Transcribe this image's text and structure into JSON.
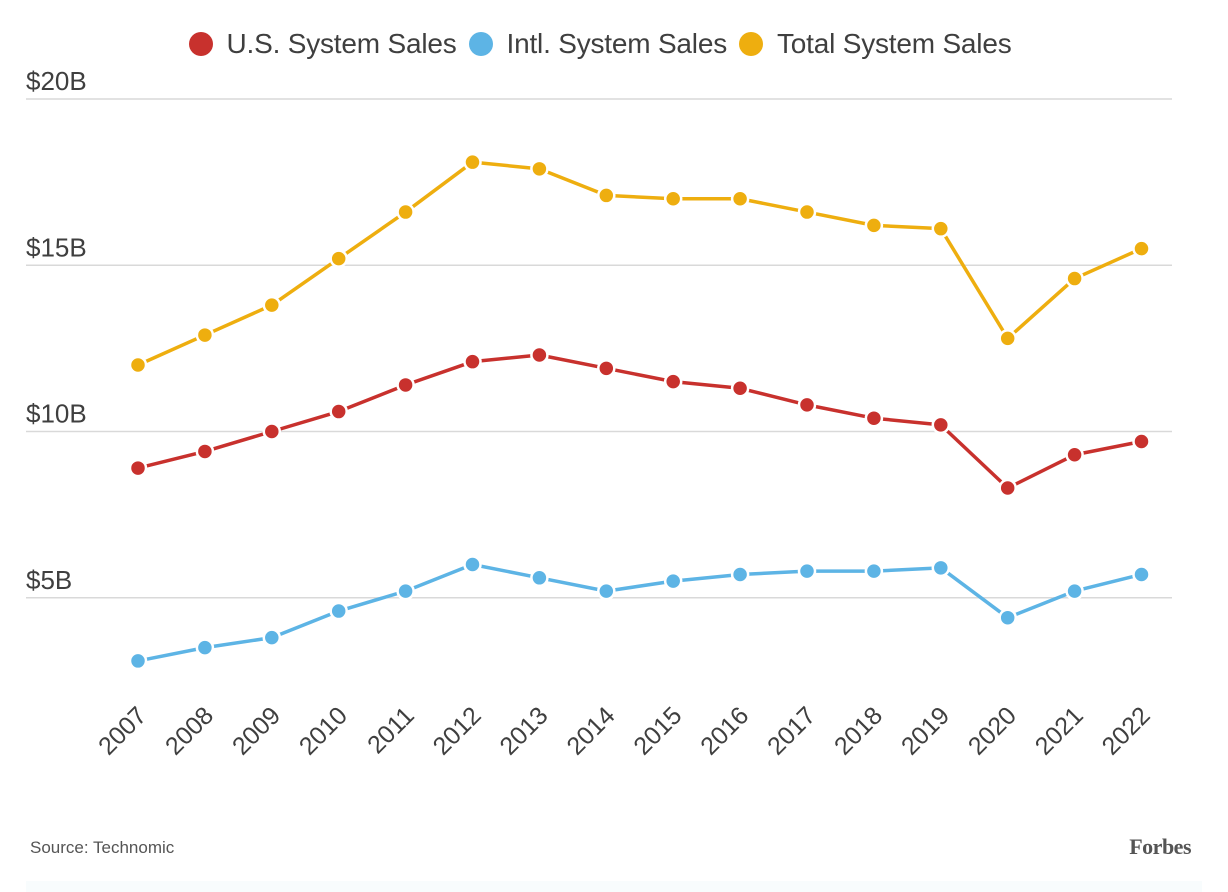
{
  "chart_data": {
    "type": "line",
    "title": "",
    "xlabel": "",
    "ylabel": "",
    "x": [
      "2007",
      "2008",
      "2009",
      "2010",
      "2011",
      "2012",
      "2013",
      "2014",
      "2015",
      "2016",
      "2017",
      "2018",
      "2019",
      "2020",
      "2021",
      "2022"
    ],
    "ylim": [
      0,
      20
    ],
    "yticks": [
      5,
      10,
      15,
      20
    ],
    "ytick_labels": [
      "$5B",
      "$10B",
      "$15B",
      "$20B"
    ],
    "grid": true,
    "legend_position": "top-center",
    "series": [
      {
        "name": "U.S. System Sales",
        "color": "#c8312d",
        "values": [
          8.9,
          9.4,
          10.0,
          10.6,
          11.4,
          12.1,
          12.3,
          11.9,
          11.5,
          11.3,
          10.8,
          10.4,
          10.2,
          8.3,
          9.3,
          9.7
        ]
      },
      {
        "name": "Intl. System Sales",
        "color": "#5db4e5",
        "values": [
          3.1,
          3.5,
          3.8,
          4.6,
          5.2,
          6.0,
          5.6,
          5.2,
          5.5,
          5.7,
          5.8,
          5.8,
          5.9,
          4.4,
          5.2,
          5.7
        ]
      },
      {
        "name": "Total System Sales",
        "color": "#eeae0f",
        "values": [
          12.0,
          12.9,
          13.8,
          15.2,
          16.6,
          18.1,
          17.9,
          17.1,
          17.0,
          17.0,
          16.6,
          16.2,
          16.1,
          12.8,
          14.6,
          15.5
        ]
      }
    ]
  },
  "footer": {
    "source": "Source: Technomic",
    "brand": "Forbes"
  }
}
